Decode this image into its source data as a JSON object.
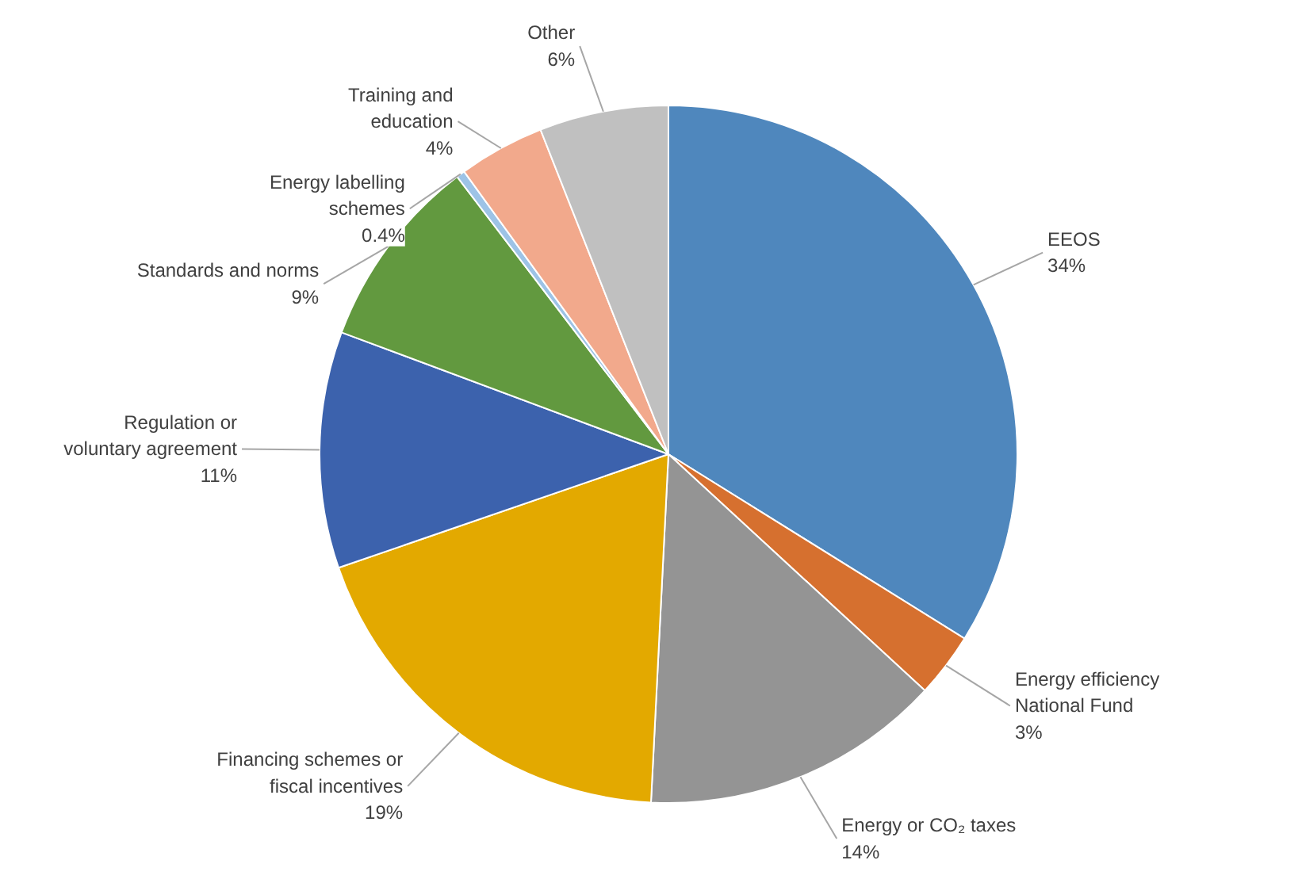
{
  "chart_data": {
    "type": "pie",
    "categories": [
      "EEOS",
      "Energy efficiency National Fund",
      "Energy or CO₂ taxes",
      "Financing schemes or fiscal incentives",
      "Regulation or voluntary agreement",
      "Standards and norms",
      "Energy labelling schemes",
      "Training and education",
      "Other"
    ],
    "values": [
      34,
      3,
      14,
      19,
      11,
      9,
      0.4,
      4,
      6
    ],
    "value_labels": [
      "34%",
      "3%",
      "14%",
      "19%",
      "11%",
      "9%",
      "0.4%",
      "4%",
      "6%"
    ],
    "colors": [
      "#4f87bd",
      "#d6702f",
      "#949494",
      "#e3a900",
      "#3c62ad",
      "#62993f",
      "#9dc3e6",
      "#f2a98c",
      "#c0c0c0"
    ]
  }
}
